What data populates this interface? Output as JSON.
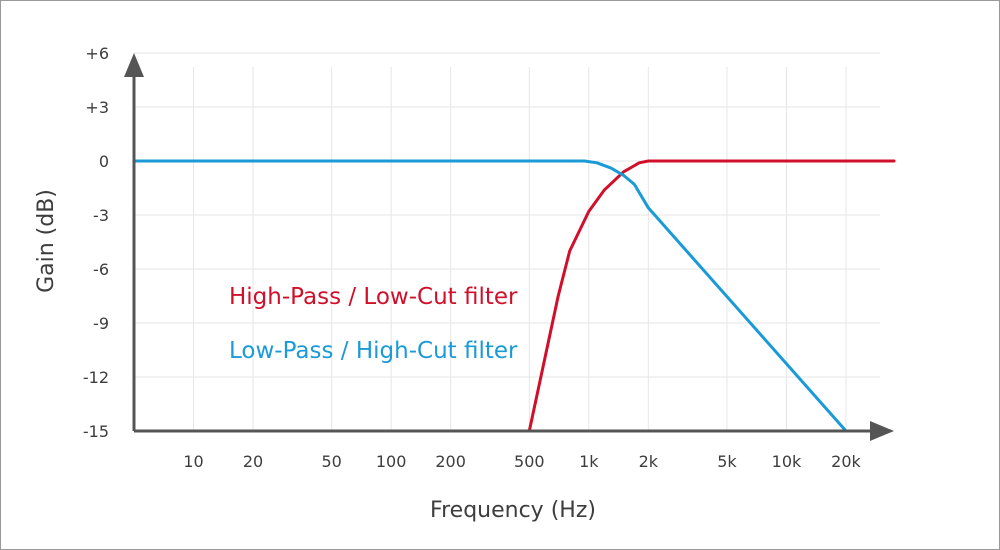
{
  "chart_data": {
    "type": "line",
    "title": "",
    "xlabel": "Frequency (Hz)",
    "ylabel": "Gain (dB)",
    "x_scale": "log",
    "x_ticks": [
      10,
      20,
      50,
      100,
      200,
      500,
      1000,
      2000,
      5000,
      10000,
      20000
    ],
    "x_tick_labels": [
      "10",
      "20",
      "50",
      "100",
      "200",
      "500",
      "1k",
      "2k",
      "5k",
      "10k",
      "20k"
    ],
    "y_ticks": [
      6,
      3,
      0,
      -3,
      -6,
      -9,
      -12,
      -15
    ],
    "y_tick_labels": [
      "+6",
      "+3",
      "0",
      "-3",
      "-6",
      "-9",
      "-12",
      "-15"
    ],
    "xlim": [
      5,
      35000
    ],
    "ylim": [
      -15,
      6
    ],
    "grid": true,
    "series": [
      {
        "name": "High-Pass / Low-Cut filter",
        "color": "#d0102a",
        "points": [
          [
            500,
            -15
          ],
          [
            700,
            -7.5
          ],
          [
            800,
            -5
          ],
          [
            1000,
            -2.8
          ],
          [
            1200,
            -1.6
          ],
          [
            1500,
            -0.6
          ],
          [
            1800,
            -0.1
          ],
          [
            2000,
            0
          ],
          [
            35000,
            0
          ]
        ]
      },
      {
        "name": "Low-Pass / High-Cut filter",
        "color": "#1a9ad6",
        "points": [
          [
            5,
            0
          ],
          [
            950,
            0
          ],
          [
            1100,
            -0.1
          ],
          [
            1300,
            -0.4
          ],
          [
            1500,
            -0.8
          ],
          [
            1700,
            -1.3
          ],
          [
            2000,
            -2.6
          ],
          [
            20000,
            -15
          ]
        ]
      }
    ],
    "legend": [
      {
        "label": "High-Pass / Low-Cut filter",
        "color": "#d0102a"
      },
      {
        "label": "Low-Pass / High-Cut filter",
        "color": "#1a9ad6"
      }
    ],
    "legend_position": "center-left",
    "axis_color": "#555555",
    "grid_color": "#e6e6e6"
  }
}
